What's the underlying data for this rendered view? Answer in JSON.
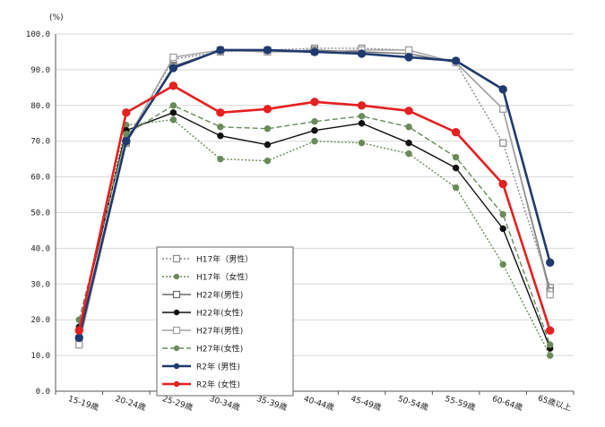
{
  "chart_data": {
    "type": "line",
    "unit_label": "(%)",
    "categories": [
      "15-19歳",
      "20-24歳",
      "25-29歳",
      "30-34歳",
      "35-39歳",
      "40-44歳",
      "45-49歳",
      "50-54歳",
      "55-59歳",
      "60-64歳",
      "65歳以上"
    ],
    "ylim": [
      0,
      100
    ],
    "yticks": [
      "0.0",
      "10.0",
      "20.0",
      "30.0",
      "40.0",
      "50.0",
      "60.0",
      "70.0",
      "80.0",
      "90.0",
      "100.0"
    ],
    "grid": true,
    "legend_position": "left-center",
    "series": [
      {
        "name": "H17年（男性）",
        "color": "#8a8a8a",
        "dash": "dotted",
        "marker": "open-square",
        "values": [
          13.0,
          70.0,
          93.0,
          95.0,
          95.5,
          96.0,
          96.0,
          95.5,
          92.0,
          69.5,
          29.0
        ]
      },
      {
        "name": "H17年（女性）",
        "color": "#6b8a5a",
        "dash": "dotted",
        "marker": "filled-circle",
        "values": [
          17.0,
          74.5,
          76.0,
          65.0,
          64.5,
          70.0,
          69.5,
          66.5,
          57.0,
          35.5,
          10.0
        ]
      },
      {
        "name": "H22年(男性)",
        "color": "#6b6b6b",
        "dash": "solid",
        "marker": "open-square",
        "values": [
          13.5,
          69.5,
          91.0,
          95.5,
          95.0,
          95.5,
          95.0,
          94.5,
          92.0,
          79.0,
          28.0
        ]
      },
      {
        "name": "H22年(女性)",
        "color": "#111111",
        "dash": "solid",
        "marker": "filled-circle",
        "values": [
          18.0,
          73.0,
          78.0,
          71.5,
          69.0,
          73.0,
          75.0,
          69.5,
          62.5,
          45.5,
          12.0
        ]
      },
      {
        "name": "H27年(男性)",
        "color": "#a0a0a0",
        "dash": "solid",
        "marker": "open-square",
        "values": [
          13.0,
          70.0,
          93.5,
          95.5,
          95.0,
          95.0,
          95.5,
          95.5,
          92.0,
          79.0,
          27.0
        ]
      },
      {
        "name": "H27年(女性)",
        "color": "#6b8a5a",
        "dash": "dashed",
        "marker": "filled-circle",
        "values": [
          20.0,
          72.0,
          80.0,
          74.0,
          73.5,
          75.5,
          77.0,
          74.0,
          65.5,
          49.5,
          13.0
        ]
      },
      {
        "name": "R2年 (男性)",
        "color": "#1f3a6e",
        "dash": "solid",
        "marker": "filled-circle",
        "values": [
          15.0,
          70.0,
          90.5,
          95.5,
          95.5,
          95.0,
          94.5,
          93.5,
          92.5,
          84.5,
          36.0
        ]
      },
      {
        "name": "R2年 (女性)",
        "color": "#e52020",
        "dash": "solid",
        "marker": "filled-circle",
        "values": [
          17.0,
          78.0,
          85.5,
          78.0,
          79.0,
          81.0,
          80.0,
          78.5,
          72.5,
          58.0,
          17.0
        ]
      }
    ]
  }
}
